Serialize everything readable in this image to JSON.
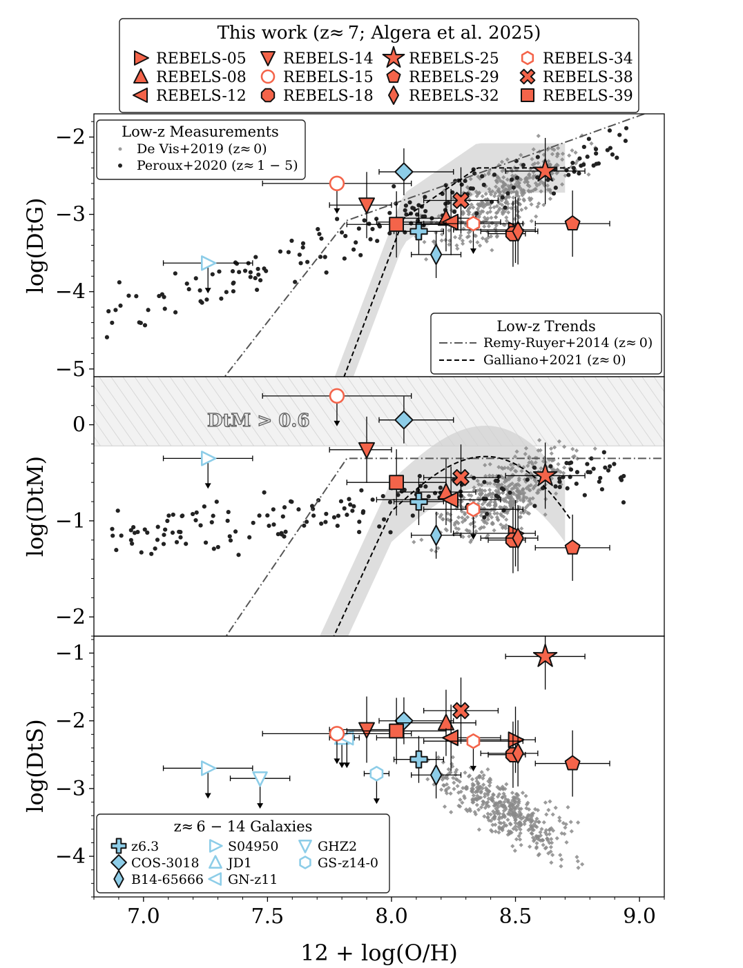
{
  "chart_data": {
    "type": "scatter",
    "xlabel": "12 + log(O/H)",
    "xlim": [
      6.8,
      9.1
    ],
    "xticks": [
      "7.0",
      "7.5",
      "8.0",
      "8.5",
      "9.0"
    ],
    "xtick_values": [
      7.0,
      7.5,
      8.0,
      8.5,
      9.0
    ],
    "colors": {
      "rebels": "#f4644a",
      "literature": "#8dcde8",
      "devis": "#8a8a8a",
      "peroux": "#222222",
      "band": "#d0d0d0"
    },
    "panels": [
      {
        "id": "dtg",
        "ylabel": "log(DtG)",
        "ylim": [
          -5.1,
          -1.7
        ],
        "inverted": true,
        "yticks": [
          "−2",
          "−3",
          "−4",
          "−5"
        ],
        "ytick_values": [
          -2,
          -3,
          -4,
          -5
        ]
      },
      {
        "id": "dtm",
        "ylabel": "log(DtM)",
        "ylim": [
          -2.2,
          0.5
        ],
        "inverted": false,
        "yticks": [
          "0",
          "−1",
          "−2"
        ],
        "ytick_values": [
          0,
          -1,
          -2
        ],
        "annotation": "DtM > 0.6",
        "shaded_region": [
          -0.22,
          0.5
        ]
      },
      {
        "id": "dts",
        "ylabel": "log(DtS)",
        "ylim": [
          -4.6,
          -0.75
        ],
        "inverted": false,
        "yticks": [
          "−1",
          "−2",
          "−3",
          "−4"
        ],
        "ytick_values": [
          -1,
          -2,
          -3,
          -4
        ]
      }
    ],
    "rebels": [
      {
        "name": "REBELS-05",
        "marker": "tri-right",
        "x": 8.5,
        "xerr": [
          0.25,
          0.08
        ],
        "dtg": -3.2,
        "dtm": -1.13,
        "dts": -2.28
      },
      {
        "name": "REBELS-08",
        "marker": "tri-up",
        "x": 8.22,
        "xerr": [
          0.2,
          0.12
        ],
        "dtg": -3.05,
        "dtm": -0.7,
        "dts": -2.03
      },
      {
        "name": "REBELS-12",
        "marker": "tri-left",
        "x": 8.24,
        "xerr": [
          0.3,
          0.2
        ],
        "dtg": -3.1,
        "dtm": -0.78,
        "dts": -2.25
      },
      {
        "name": "REBELS-14",
        "marker": "tri-down",
        "x": 7.9,
        "xerr": [
          0.15,
          0.1
        ],
        "dtg": -2.88,
        "dtm": -0.26,
        "dts": -2.13
      },
      {
        "name": "REBELS-15",
        "marker": "circle-open",
        "x": 7.78,
        "xerr": [
          0.3,
          0.3
        ],
        "dtg": -2.6,
        "dtm": 0.3,
        "dts": -2.19,
        "upper": true
      },
      {
        "name": "REBELS-18",
        "marker": "octagon",
        "x": 8.49,
        "xerr": [
          0.1,
          0.05
        ],
        "dtg": -3.25,
        "dtm": -1.2,
        "dts": -2.5
      },
      {
        "name": "REBELS-25",
        "marker": "star",
        "x": 8.62,
        "xerr": [
          0.16,
          0.16
        ],
        "dtg": -2.44,
        "dtm": -0.53,
        "dts": -1.05
      },
      {
        "name": "REBELS-29",
        "marker": "pentagon",
        "x": 8.73,
        "xerr": [
          0.15,
          0.15
        ],
        "dtg": -3.12,
        "dtm": -1.28,
        "dts": -2.63
      },
      {
        "name": "REBELS-32",
        "marker": "diamond-thin",
        "x": 8.51,
        "xerr": [
          0.15,
          0.08
        ],
        "dtg": -3.22,
        "dtm": -1.18,
        "dts": -2.48
      },
      {
        "name": "REBELS-34",
        "marker": "hexagon-open",
        "x": 8.33,
        "xerr": [
          0.2,
          0.2
        ],
        "dtg": -3.12,
        "dtm": -0.88,
        "dts": -2.3,
        "upper": true
      },
      {
        "name": "REBELS-38",
        "marker": "x-cross",
        "x": 8.28,
        "xerr": [
          0.15,
          0.15
        ],
        "dtg": -2.82,
        "dtm": -0.55,
        "dts": -1.85
      },
      {
        "name": "REBELS-39",
        "marker": "square",
        "x": 8.02,
        "xerr": [
          0.2,
          0.2
        ],
        "dtg": -3.13,
        "dtm": -0.6,
        "dts": -2.15
      }
    ],
    "literature": [
      {
        "name": "z6.3",
        "marker": "plus",
        "x": 8.11,
        "xerr": [
          0.1,
          0.1
        ],
        "dtg": -3.22,
        "dtm": -0.8,
        "dts": -2.57
      },
      {
        "name": "COS-3018",
        "marker": "diamond",
        "x": 8.05,
        "xerr": [
          0.1,
          0.2
        ],
        "dtg": -2.45,
        "dtm": 0.05,
        "dts": -2.0
      },
      {
        "name": "B14-65666",
        "marker": "diamond-thin",
        "x": 8.18,
        "xerr": [
          0.1,
          0.1
        ],
        "dtg": -3.52,
        "dtm": -1.15,
        "dts": -2.8
      },
      {
        "name": "S04950",
        "marker": "tri-right-open",
        "x": 7.26,
        "xerr": [
          0.18,
          0.18
        ],
        "dtg": -3.63,
        "dtm": -0.35,
        "dts": -2.7,
        "upper": true
      },
      {
        "name": "JD1",
        "marker": "tri-up-open",
        "x": 7.8,
        "xerr": [
          0.05,
          0.05
        ],
        "dts": -2.25,
        "upper": true
      },
      {
        "name": "GN-z11",
        "marker": "tri-left-open",
        "x": 7.82,
        "xerr": [
          0.05,
          0.05
        ],
        "dts": -2.25,
        "upper": true
      },
      {
        "name": "GHZ2",
        "marker": "tri-down-open",
        "x": 7.47,
        "xerr": [
          0.12,
          0.12
        ],
        "dts": -2.85,
        "upper": true
      },
      {
        "name": "GS-z14-0",
        "marker": "hexagon-open",
        "x": 7.94,
        "xerr": [
          0.05,
          0.05
        ],
        "dts": -2.78,
        "upper": true
      }
    ],
    "legend_main": {
      "title": "This work (z≈ 7; Algera et al. 2025)",
      "entries": [
        "REBELS-05",
        "REBELS-08",
        "REBELS-12",
        "REBELS-14",
        "REBELS-15",
        "REBELS-18",
        "REBELS-25",
        "REBELS-29",
        "REBELS-32",
        "REBELS-34",
        "REBELS-38",
        "REBELS-39"
      ]
    },
    "legend_lowz_meas": {
      "title": "Low-z Measurements",
      "entries": [
        "De Vis+2019 (z≈ 0)",
        "Peroux+2020 (z≈ 1 − 5)"
      ]
    },
    "legend_lowz_trends": {
      "title": "Low-z Trends",
      "entries": [
        "Remy-Ruyer+2014 (z≈ 0)",
        "Galliano+2021 (z≈ 0)"
      ]
    },
    "legend_highz": {
      "title": "z≈ 6 − 14 Galaxies",
      "entries": [
        "z6.3",
        "COS-3018",
        "B14-65666",
        "S04950",
        "JD1",
        "GN-z11",
        "GHZ2",
        "GS-z14-0"
      ]
    }
  }
}
